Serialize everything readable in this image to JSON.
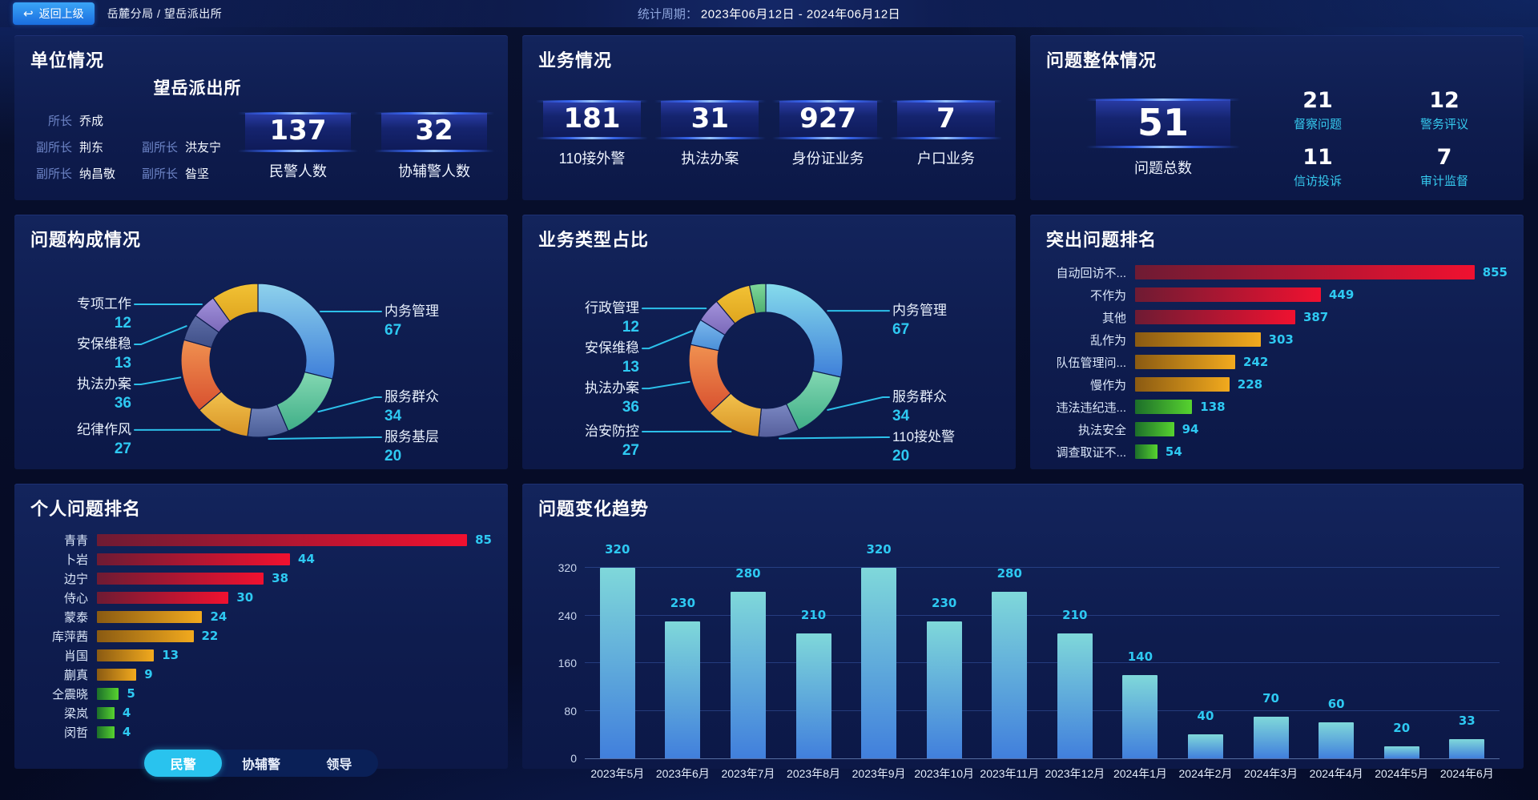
{
  "top_bar": {
    "back_button": "返回上级",
    "breadcrumb": "岳麓分局 / 望岳派出所",
    "period_label": "统计周期：",
    "period_value": "2023年06月12日 - 2024年06月12日"
  },
  "colors": {
    "accent_cyan": "#2ec9f2",
    "label_blue": "#6d84c6",
    "panel_bg": "#0e1c4e",
    "bar_palettes": {
      "red": [
        "#6e1b33",
        "#f01130"
      ],
      "amber": [
        "#8a5a12",
        "#f2aa1e"
      ],
      "green": [
        "#1c6e2a",
        "#57d32f"
      ]
    },
    "connector": "#2cc0ea"
  },
  "panels": {
    "unit": {
      "title": "单位情况",
      "station_name": "望岳派出所",
      "leaders": [
        {
          "role": "所长",
          "name": "乔成"
        },
        {
          "role": "副所长",
          "name": "荆东"
        },
        {
          "role": "副所长",
          "name": "洪友宁"
        },
        {
          "role": "副所长",
          "name": "纳昌敬"
        },
        {
          "role": "副所长",
          "name": "昝坚"
        }
      ],
      "stats": [
        {
          "value": "137",
          "label": "民警人数"
        },
        {
          "value": "32",
          "label": "协辅警人数"
        }
      ]
    },
    "business": {
      "title": "业务情况",
      "stats": [
        {
          "value": "181",
          "label": "110接外警"
        },
        {
          "value": "31",
          "label": "执法办案"
        },
        {
          "value": "927",
          "label": "身份证业务"
        },
        {
          "value": "7",
          "label": "户口业务"
        }
      ]
    },
    "problem_overall": {
      "title": "问题整体情况",
      "total": {
        "value": "51",
        "label": "问题总数"
      },
      "stats": [
        {
          "value": "21",
          "label": "督察问题"
        },
        {
          "value": "12",
          "label": "警务评议"
        },
        {
          "value": "11",
          "label": "信访投诉"
        },
        {
          "value": "7",
          "label": "审计监督"
        }
      ]
    },
    "personal_ranking": {
      "tabs": [
        "民警",
        "协辅警",
        "领导"
      ],
      "active_tab": 0
    }
  },
  "chart_data": [
    {
      "id": "donut1",
      "type": "pie",
      "title": "问题构成情况",
      "slices": [
        {
          "label": "内务管理",
          "value": 67,
          "color": [
            "#8ed2ec",
            "#3f7fd9"
          ]
        },
        {
          "label": "服务群众",
          "value": 34,
          "color": [
            "#83d8b2",
            "#3fae87"
          ]
        },
        {
          "label": "服务基层",
          "value": 20,
          "color": [
            "#7286bd",
            "#4a5d96"
          ]
        },
        {
          "label": "纪律作风",
          "value": 27,
          "color": [
            "#f2c24d",
            "#d89426"
          ]
        },
        {
          "label": "执法办案",
          "value": 36,
          "color": [
            "#f09150",
            "#d8502f"
          ]
        },
        {
          "label": "安保维稳",
          "value": 13,
          "color": [
            "#5d6da6",
            "#3f4f88"
          ]
        },
        {
          "label": "专项工作",
          "value": 12,
          "color": [
            "#a393dc",
            "#7a68b8"
          ]
        },
        {
          "label": "",
          "value": 23,
          "color": [
            "#f2c235",
            "#dfa51e"
          ]
        }
      ]
    },
    {
      "id": "donut2",
      "type": "pie",
      "title": "业务类型占比",
      "slices": [
        {
          "label": "内务管理",
          "value": 67,
          "color": [
            "#86dcec",
            "#3f7fd9"
          ]
        },
        {
          "label": "服务群众",
          "value": 34,
          "color": [
            "#83d8b2",
            "#3fae87"
          ]
        },
        {
          "label": "110接处警",
          "value": 20,
          "color": [
            "#7a87c2",
            "#565f9c"
          ]
        },
        {
          "label": "治安防控",
          "value": 27,
          "color": [
            "#f2c24d",
            "#d89426"
          ]
        },
        {
          "label": "执法办案",
          "value": 36,
          "color": [
            "#f09150",
            "#d8502f"
          ]
        },
        {
          "label": "安保维稳",
          "value": 13,
          "color": [
            "#7bb8ec",
            "#4a8ed8"
          ]
        },
        {
          "label": "行政管理",
          "value": 12,
          "color": [
            "#a393dc",
            "#7a68b8"
          ]
        },
        {
          "label": "",
          "value": 18,
          "color": [
            "#f2c235",
            "#dfa51e"
          ]
        },
        {
          "label": "",
          "value": 8,
          "color": [
            "#7ed89a",
            "#4fae6e"
          ]
        }
      ]
    },
    {
      "id": "hbar1",
      "type": "bar",
      "orientation": "horizontal",
      "title": "突出问题排名",
      "categories": [
        "自动回访不...",
        "不作为",
        "其他",
        "乱作为",
        "队伍管理问...",
        "慢作为",
        "违法违纪违...",
        "执法安全",
        "调查取证不..."
      ],
      "values": [
        855,
        449,
        387,
        303,
        242,
        228,
        138,
        94,
        54
      ],
      "colors": [
        "red",
        "red",
        "red",
        "amber",
        "amber",
        "amber",
        "green",
        "green",
        "green"
      ],
      "xmax": 900
    },
    {
      "id": "hbar2",
      "type": "bar",
      "orientation": "horizontal",
      "title": "个人问题排名",
      "categories": [
        "青青",
        "卜岩",
        "边宁",
        "侍心",
        "蒙泰",
        "库萍茜",
        "肖国",
        "蒯真",
        "仝震晓",
        "梁岚",
        "闵哲"
      ],
      "values": [
        85,
        44,
        38,
        30,
        24,
        22,
        13,
        9,
        5,
        4,
        4
      ],
      "colors": [
        "red",
        "red",
        "red",
        "red",
        "amber",
        "amber",
        "amber",
        "amber",
        "green",
        "green",
        "green"
      ],
      "xmax": 90
    },
    {
      "id": "vbar1",
      "type": "bar",
      "orientation": "vertical",
      "title": "问题变化趋势",
      "categories": [
        "2023年5月",
        "2023年6月",
        "2023年7月",
        "2023年8月",
        "2023年9月",
        "2023年10月",
        "2023年11月",
        "2023年12月",
        "2024年1月",
        "2024年2月",
        "2024年3月",
        "2024年4月",
        "2024年5月",
        "2024年6月"
      ],
      "values": [
        320,
        230,
        280,
        210,
        320,
        230,
        280,
        210,
        140,
        40,
        70,
        60,
        20,
        33
      ],
      "yticks": [
        0,
        80,
        160,
        240,
        320
      ],
      "ylim": [
        0,
        330
      ],
      "bar_gradient": [
        "#7fd8da",
        "#417fdc"
      ]
    }
  ]
}
